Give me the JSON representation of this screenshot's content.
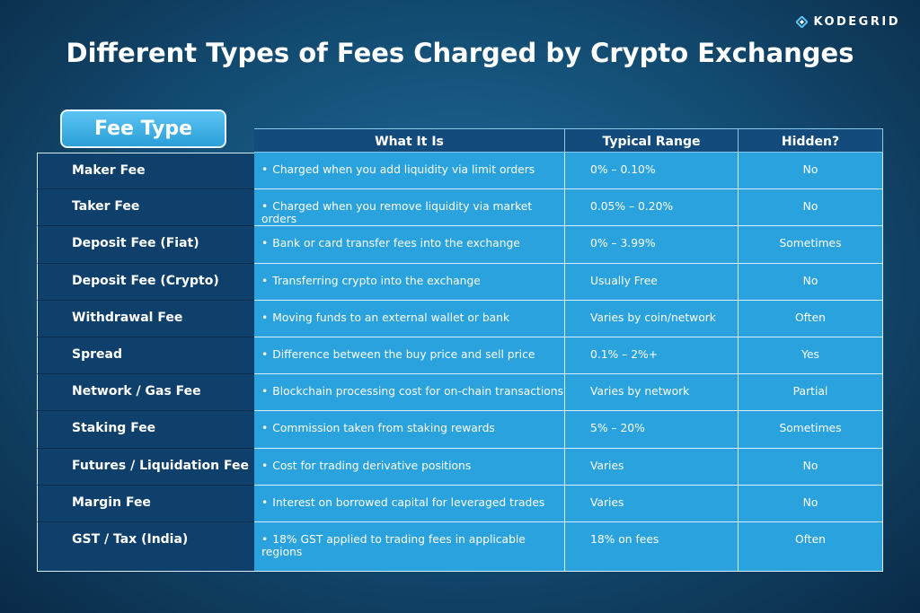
{
  "logo": "KODEGRID",
  "title": "Different Types of Fees Charged by Crypto Exchanges",
  "table": {
    "headers": [
      "Fee Type",
      "What It Is",
      "Typical Range",
      "Hidden?"
    ],
    "rows": [
      [
        "Maker Fee",
        "Charged when you add liquidity via limit orders",
        "0% – 0.10%",
        "No"
      ],
      [
        "Taker Fee",
        "Charged when you remove liquidity via market orders",
        "0.05% – 0.20%",
        "No"
      ],
      [
        "Deposit Fee (Fiat)",
        "Bank or card transfer fees into the exchange",
        "0% – 3.99%",
        "Sometimes"
      ],
      [
        "Deposit Fee (Crypto)",
        "Transferring crypto into the exchange",
        "Usually Free",
        "No"
      ],
      [
        "Withdrawal Fee",
        "Moving funds to an external wallet or bank",
        "Varies by coin/network",
        "Often"
      ],
      [
        "Spread",
        "Difference between the buy price and sell price",
        "0.1% – 2%+",
        "Yes"
      ],
      [
        "Network / Gas Fee",
        "Blockchain processing cost for on-chain transactions",
        "Varies by network",
        "Partial"
      ],
      [
        "Staking Fee",
        "Commission taken from staking rewards",
        "5% – 20%",
        "Sometimes"
      ],
      [
        "Futures / Liquidation Fee",
        "Cost for trading derivative positions",
        "Varies",
        "No"
      ],
      [
        "Margin Fee",
        "Interest on borrowed capital for leveraged trades",
        "Varies",
        "No"
      ],
      [
        "GST / Tax (India)",
        "18% GST applied to trading fees in applicable regions",
        "18% on fees",
        "Often"
      ]
    ]
  }
}
